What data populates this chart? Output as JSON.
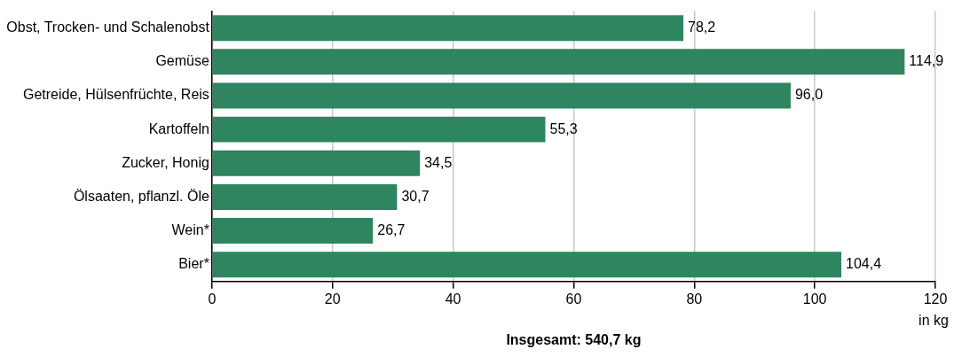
{
  "chart_data": {
    "type": "bar",
    "orientation": "horizontal",
    "categories": [
      "Obst, Trocken- und Schalenobst",
      "Gemüse",
      "Getreide, Hülsenfrüchte, Reis",
      "Kartoffeln",
      "Zucker, Honig",
      "Ölsaaten, pflanzl. Öle",
      "Wein*",
      "Bier*"
    ],
    "values": [
      78.2,
      114.9,
      96.0,
      55.3,
      34.5,
      30.7,
      26.7,
      104.4
    ],
    "value_labels": [
      "78,2",
      "114,9",
      "96,0",
      "55,3",
      "34,5",
      "30,7",
      "26,7",
      "104,4"
    ],
    "color": "#2e8560",
    "xlim": [
      0,
      120
    ],
    "xticks": [
      0,
      20,
      40,
      60,
      80,
      100,
      120
    ],
    "xlabel": "in kg",
    "grid": "x",
    "annotations": [
      "Insgesamt: 540,7 kg"
    ]
  }
}
